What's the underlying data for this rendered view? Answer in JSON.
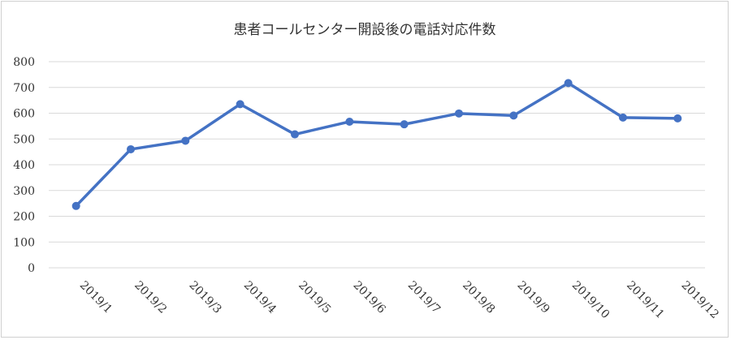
{
  "chart_data": {
    "type": "line",
    "title": "患者コールセンター開設後の電話対応件数",
    "xlabel": "",
    "ylabel": "",
    "categories": [
      "2019/1",
      "2019/2",
      "2019/3",
      "2019/4",
      "2019/5",
      "2019/6",
      "2019/7",
      "2019/8",
      "2019/9",
      "2019/10",
      "2019/11",
      "2019/12"
    ],
    "series": [
      {
        "values": [
          240,
          460,
          493,
          635,
          518,
          567,
          557,
          599,
          591,
          717,
          583,
          580
        ]
      }
    ],
    "ylim": [
      0,
      800
    ],
    "yticks": [
      "0",
      "100",
      "200",
      "300",
      "400",
      "500",
      "600",
      "700",
      "800"
    ],
    "grid": true,
    "legend": "none",
    "colors": {
      "line": "#4472c4",
      "grid": "#d9d9d9"
    }
  }
}
